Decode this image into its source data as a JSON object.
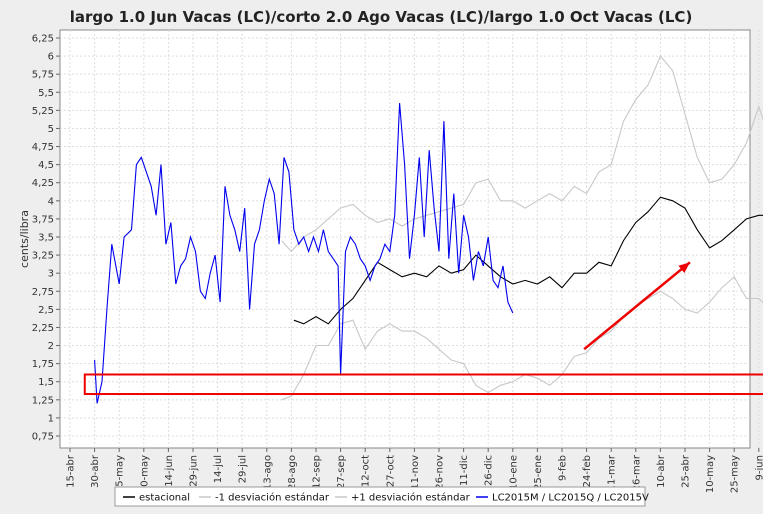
{
  "chart_data": {
    "type": "line",
    "title": "largo 1.0 Jun Vacas (LC)/corto 2.0 Ago Vacas (LC)/largo 1.0 Oct Vacas (LC)",
    "ylabel": "cents/libra",
    "xlabel": "",
    "ylim": [
      0.75,
      6.25
    ],
    "yticks": [
      "0,75",
      "1",
      "1,25",
      "1,5",
      "1,75",
      "2",
      "2,25",
      "2,5",
      "2,75",
      "3",
      "3,25",
      "3,5",
      "3,75",
      "4",
      "4,25",
      "4,5",
      "4,75",
      "5",
      "5,25",
      "5,5",
      "5,75",
      "6",
      "6,25"
    ],
    "xticks": [
      "15-abr",
      "30-abr",
      "15-may",
      "30-may",
      "14-jun",
      "29-jun",
      "14-jul",
      "29-jul",
      "13-ago",
      "28-ago",
      "12-sep",
      "27-sep",
      "12-oct",
      "27-oct",
      "11-nov",
      "26-nov",
      "11-dic",
      "26-dic",
      "10-ene",
      "25-ene",
      "9-feb",
      "24-feb",
      "11-mar",
      "26-mar",
      "10-abr",
      "25-abr",
      "10-may",
      "25-may",
      "9-jun"
    ],
    "series": [
      {
        "name": "estacional",
        "color": "#000000",
        "points": [
          [
            9.1,
            2.35
          ],
          [
            9.5,
            2.3
          ],
          [
            10,
            2.4
          ],
          [
            10.5,
            2.3
          ],
          [
            11,
            2.5
          ],
          [
            11.5,
            2.65
          ],
          [
            12,
            2.9
          ],
          [
            12.5,
            3.15
          ],
          [
            13,
            3.05
          ],
          [
            13.5,
            2.95
          ],
          [
            14,
            3.0
          ],
          [
            14.5,
            2.95
          ],
          [
            15,
            3.1
          ],
          [
            15.5,
            3.0
          ],
          [
            16,
            3.05
          ],
          [
            16.5,
            3.25
          ],
          [
            17,
            3.1
          ],
          [
            17.5,
            2.95
          ],
          [
            18,
            2.85
          ],
          [
            18.5,
            2.9
          ],
          [
            19,
            2.85
          ],
          [
            19.5,
            2.95
          ],
          [
            20,
            2.8
          ],
          [
            20.5,
            3.0
          ],
          [
            21,
            3.0
          ],
          [
            21.5,
            3.15
          ],
          [
            22,
            3.1
          ],
          [
            22.5,
            3.45
          ],
          [
            23,
            3.7
          ],
          [
            23.5,
            3.85
          ],
          [
            24,
            4.05
          ],
          [
            24.5,
            4.0
          ],
          [
            25,
            3.9
          ],
          [
            25.5,
            3.6
          ],
          [
            26,
            3.35
          ],
          [
            26.5,
            3.45
          ],
          [
            27,
            3.6
          ],
          [
            27.5,
            3.75
          ],
          [
            28,
            3.8
          ],
          [
            28.3,
            3.8
          ]
        ]
      },
      {
        "name": "-1 desviación estándar",
        "color": "#c8c8c8",
        "points": [
          [
            8.6,
            1.25
          ],
          [
            9,
            1.3
          ],
          [
            9.5,
            1.6
          ],
          [
            10,
            2.0
          ],
          [
            10.5,
            2.0
          ],
          [
            11,
            2.3
          ],
          [
            11.5,
            2.35
          ],
          [
            12,
            1.95
          ],
          [
            12.5,
            2.2
          ],
          [
            13,
            2.3
          ],
          [
            13.5,
            2.2
          ],
          [
            14,
            2.2
          ],
          [
            14.5,
            2.1
          ],
          [
            15,
            1.95
          ],
          [
            15.5,
            1.8
          ],
          [
            16,
            1.75
          ],
          [
            16.5,
            1.45
          ],
          [
            17,
            1.35
          ],
          [
            17.5,
            1.45
          ],
          [
            18,
            1.5
          ],
          [
            18.5,
            1.6
          ],
          [
            19,
            1.55
          ],
          [
            19.5,
            1.45
          ],
          [
            20,
            1.6
          ],
          [
            20.5,
            1.85
          ],
          [
            21,
            1.9
          ],
          [
            21.5,
            2.1
          ],
          [
            22,
            2.2
          ],
          [
            22.5,
            2.4
          ],
          [
            23,
            2.55
          ],
          [
            23.5,
            2.65
          ],
          [
            24,
            2.75
          ],
          [
            24.5,
            2.65
          ],
          [
            25,
            2.5
          ],
          [
            25.5,
            2.45
          ],
          [
            26,
            2.6
          ],
          [
            26.5,
            2.8
          ],
          [
            27,
            2.95
          ],
          [
            27.5,
            2.65
          ],
          [
            28,
            2.65
          ],
          [
            28.3,
            2.55
          ]
        ]
      },
      {
        "name": "+1 desviación estándar",
        "color": "#c8c8c8",
        "points": [
          [
            8.6,
            3.45
          ],
          [
            9,
            3.3
          ],
          [
            9.5,
            3.5
          ],
          [
            10,
            3.6
          ],
          [
            10.5,
            3.75
          ],
          [
            11,
            3.9
          ],
          [
            11.5,
            3.95
          ],
          [
            12,
            3.8
          ],
          [
            12.5,
            3.7
          ],
          [
            13,
            3.75
          ],
          [
            13.5,
            3.65
          ],
          [
            14,
            3.75
          ],
          [
            14.5,
            3.8
          ],
          [
            15,
            3.85
          ],
          [
            15.5,
            3.9
          ],
          [
            16,
            3.95
          ],
          [
            16.5,
            4.25
          ],
          [
            17,
            4.3
          ],
          [
            17.5,
            4.0
          ],
          [
            18,
            4.0
          ],
          [
            18.5,
            3.9
          ],
          [
            19,
            4.0
          ],
          [
            19.5,
            4.1
          ],
          [
            20,
            4.0
          ],
          [
            20.5,
            4.2
          ],
          [
            21,
            4.1
          ],
          [
            21.5,
            4.4
          ],
          [
            22,
            4.5
          ],
          [
            22.5,
            5.1
          ],
          [
            23,
            5.4
          ],
          [
            23.5,
            5.6
          ],
          [
            24,
            6.0
          ],
          [
            24.5,
            5.8
          ],
          [
            25,
            5.2
          ],
          [
            25.5,
            4.6
          ],
          [
            26,
            4.25
          ],
          [
            26.5,
            4.3
          ],
          [
            27,
            4.5
          ],
          [
            27.5,
            4.8
          ],
          [
            28,
            5.3
          ],
          [
            28.3,
            5.0
          ]
        ]
      },
      {
        "name": "LC2015M / LC2015Q / LC2015V",
        "color": "#0000ee",
        "points": [
          [
            1,
            1.8
          ],
          [
            1.1,
            1.2
          ],
          [
            1.3,
            1.5
          ],
          [
            1.5,
            2.5
          ],
          [
            1.7,
            3.4
          ],
          [
            2,
            2.85
          ],
          [
            2.2,
            3.5
          ],
          [
            2.5,
            3.6
          ],
          [
            2.7,
            4.5
          ],
          [
            2.9,
            4.6
          ],
          [
            3.1,
            4.4
          ],
          [
            3.3,
            4.2
          ],
          [
            3.5,
            3.8
          ],
          [
            3.7,
            4.5
          ],
          [
            3.9,
            3.4
          ],
          [
            4.1,
            3.7
          ],
          [
            4.3,
            2.85
          ],
          [
            4.5,
            3.1
          ],
          [
            4.7,
            3.2
          ],
          [
            4.9,
            3.5
          ],
          [
            5.1,
            3.3
          ],
          [
            5.3,
            2.75
          ],
          [
            5.5,
            2.65
          ],
          [
            5.7,
            3.0
          ],
          [
            5.9,
            3.25
          ],
          [
            6.1,
            2.6
          ],
          [
            6.3,
            4.2
          ],
          [
            6.5,
            3.8
          ],
          [
            6.7,
            3.6
          ],
          [
            6.9,
            3.3
          ],
          [
            7.1,
            3.9
          ],
          [
            7.3,
            2.5
          ],
          [
            7.5,
            3.4
          ],
          [
            7.7,
            3.6
          ],
          [
            7.9,
            4.0
          ],
          [
            8.1,
            4.3
          ],
          [
            8.3,
            4.1
          ],
          [
            8.5,
            3.4
          ],
          [
            8.7,
            4.6
          ],
          [
            8.9,
            4.4
          ],
          [
            9.1,
            3.6
          ],
          [
            9.3,
            3.4
          ],
          [
            9.5,
            3.5
          ],
          [
            9.7,
            3.3
          ],
          [
            9.9,
            3.5
          ],
          [
            10.1,
            3.3
          ],
          [
            10.3,
            3.6
          ],
          [
            10.5,
            3.3
          ],
          [
            10.7,
            3.2
          ],
          [
            10.9,
            3.1
          ],
          [
            11,
            1.6
          ],
          [
            11.2,
            3.3
          ],
          [
            11.4,
            3.5
          ],
          [
            11.6,
            3.4
          ],
          [
            11.8,
            3.2
          ],
          [
            12,
            3.1
          ],
          [
            12.2,
            2.9
          ],
          [
            12.4,
            3.1
          ],
          [
            12.6,
            3.2
          ],
          [
            12.8,
            3.4
          ],
          [
            13,
            3.3
          ],
          [
            13.2,
            3.8
          ],
          [
            13.4,
            5.35
          ],
          [
            13.6,
            4.5
          ],
          [
            13.8,
            3.2
          ],
          [
            14,
            3.8
          ],
          [
            14.2,
            4.6
          ],
          [
            14.4,
            3.5
          ],
          [
            14.6,
            4.7
          ],
          [
            14.8,
            3.9
          ],
          [
            15,
            3.3
          ],
          [
            15.2,
            5.1
          ],
          [
            15.4,
            3.2
          ],
          [
            15.6,
            4.1
          ],
          [
            15.8,
            3.0
          ],
          [
            16,
            3.8
          ],
          [
            16.2,
            3.5
          ],
          [
            16.4,
            2.9
          ],
          [
            16.6,
            3.3
          ],
          [
            16.8,
            3.1
          ],
          [
            17,
            3.5
          ],
          [
            17.2,
            2.9
          ],
          [
            17.4,
            2.8
          ],
          [
            17.6,
            3.1
          ],
          [
            17.8,
            2.6
          ],
          [
            18,
            2.45
          ]
        ]
      }
    ]
  },
  "legend": [
    {
      "label": "estacional",
      "color": "#000000"
    },
    {
      "label": "-1 desviación estándar",
      "color": "#c8c8c8"
    },
    {
      "label": "+1 desviación estándar",
      "color": "#c8c8c8"
    },
    {
      "label": "LC2015M / LC2015Q / LC2015V",
      "color": "#0000ee"
    }
  ],
  "annotations": {
    "highlight_box": {
      "x_from": 0.6,
      "x_to": 28.3,
      "y_from": 1.33,
      "y_to": 1.6,
      "color": "#ee0000"
    },
    "arrow": {
      "x_from": 20.9,
      "y_from": 1.95,
      "x_to": 25.2,
      "y_to": 3.15,
      "color": "#ee0000"
    }
  }
}
